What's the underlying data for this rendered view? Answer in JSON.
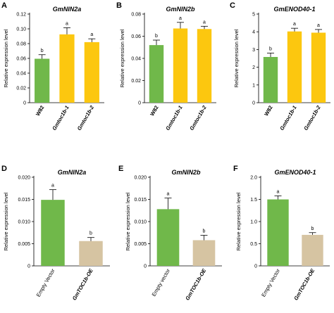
{
  "chart_data": [
    {
      "panel": "A",
      "type": "bar",
      "title": "GmNIN2a",
      "ylabel": "Relative expression level",
      "ylim": [
        0,
        0.12
      ],
      "yticks": [
        "0",
        "0.02",
        "0.04",
        "0.06",
        "0.08",
        "0.10",
        "0.12"
      ],
      "categories": [
        "W82",
        "Gmtoc1b-1",
        "Gmtoc1b-2"
      ],
      "values": [
        0.0595,
        0.0925,
        0.082
      ],
      "errors": [
        0.0055,
        0.009,
        0.0045
      ],
      "sig": [
        "b",
        "a",
        "a"
      ],
      "colors": [
        "#70b84a",
        "#fcc70f",
        "#fcc70f"
      ]
    },
    {
      "panel": "B",
      "type": "bar",
      "title": "GmNIN2b",
      "ylabel": "Relative expression level",
      "ylim": [
        0,
        0.08
      ],
      "yticks": [
        "0",
        "0.02",
        "0.04",
        "0.06",
        "0.08"
      ],
      "categories": [
        "W82",
        "Gmtoc1b-1",
        "Gmtoc1b-2"
      ],
      "values": [
        0.052,
        0.067,
        0.0665
      ],
      "errors": [
        0.0045,
        0.0055,
        0.0025
      ],
      "sig": [
        "b",
        "a",
        "a"
      ],
      "colors": [
        "#70b84a",
        "#fcc70f",
        "#fcc70f"
      ]
    },
    {
      "panel": "C",
      "type": "bar",
      "title": "GmENOD40-1",
      "ylabel": "Relative expression level",
      "ylim": [
        0,
        5
      ],
      "yticks": [
        "0",
        "1",
        "2",
        "3",
        "4",
        "5"
      ],
      "categories": [
        "W82",
        "Gmtoc1b-1",
        "Gmtoc1b-2"
      ],
      "values": [
        2.58,
        4.02,
        3.95
      ],
      "errors": [
        0.22,
        0.18,
        0.18
      ],
      "sig": [
        "b",
        "a",
        "a"
      ],
      "colors": [
        "#70b84a",
        "#fcc70f",
        "#fcc70f"
      ]
    },
    {
      "panel": "D",
      "type": "bar",
      "title": "GmNIN2a",
      "ylabel": "Relative expression level",
      "ylim": [
        0,
        0.02
      ],
      "yticks": [
        "0",
        "0.005",
        "0.010",
        "0.015",
        "0.020"
      ],
      "categories": [
        "Empty Vector",
        "GmTOC1b-OE"
      ],
      "values": [
        0.0149,
        0.0056
      ],
      "errors": [
        0.0023,
        0.0008
      ],
      "sig": [
        "a",
        "b"
      ],
      "colors": [
        "#70b84a",
        "#d6c4a2"
      ]
    },
    {
      "panel": "E",
      "type": "bar",
      "title": "GmNIN2b",
      "ylabel": "Relative expression level",
      "ylim": [
        0,
        0.02
      ],
      "yticks": [
        "0",
        "0.005",
        "0.010",
        "0.015",
        "0.020"
      ],
      "categories": [
        "Empty vector",
        "GmTOC1b-OE"
      ],
      "values": [
        0.0128,
        0.0058
      ],
      "errors": [
        0.0025,
        0.0011
      ],
      "sig": [
        "a",
        "b"
      ],
      "colors": [
        "#70b84a",
        "#d6c4a2"
      ]
    },
    {
      "panel": "F",
      "type": "bar",
      "title": "GmENOD40-1",
      "ylabel": "Relative expression level",
      "ylim": [
        0,
        2.0
      ],
      "yticks": [
        "0",
        "0.5",
        "1.0",
        "1.5",
        "2.0"
      ],
      "categories": [
        "Empty Vector",
        "GmTOC1b-OE"
      ],
      "values": [
        1.5,
        0.7
      ],
      "errors": [
        0.08,
        0.05
      ],
      "sig": [
        "a",
        "b"
      ],
      "colors": [
        "#70b84a",
        "#d6c4a2"
      ]
    }
  ]
}
